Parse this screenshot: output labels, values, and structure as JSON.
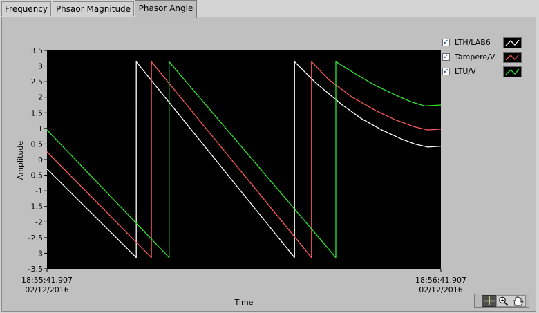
{
  "tabs": [
    {
      "label": "Frequency",
      "active": false
    },
    {
      "label": "Phsaor Magnitude",
      "active": false
    },
    {
      "label": "Phasor Angle",
      "active": true
    }
  ],
  "legend": [
    {
      "label": "LTH/LAB6",
      "checked": true,
      "color": "#ffffff"
    },
    {
      "label": "Tampere/V",
      "checked": true,
      "color": "#ff5a5a"
    },
    {
      "label": "LTU/V",
      "checked": true,
      "color": "#2ee82e"
    }
  ],
  "toolbar": {
    "tools": [
      {
        "icon": "crosshair-cursor-icon",
        "active": true
      },
      {
        "icon": "zoom-icon",
        "active": false
      },
      {
        "icon": "pan-hand-icon",
        "active": false
      }
    ]
  },
  "chart_data": {
    "type": "line",
    "xlabel": "Time",
    "ylabel": "Amplitude",
    "xlim": [
      0,
      60
    ],
    "ylim": [
      -3.5,
      3.5
    ],
    "y_ticks": [
      3.5,
      3,
      2.5,
      2,
      1.5,
      1,
      0.5,
      0,
      -0.5,
      -1,
      -1.5,
      -2,
      -2.5,
      -3,
      -3.5
    ],
    "x_tick_labels": [
      {
        "x": 0,
        "time": "18:55:41.907",
        "date": "02/12/2016"
      },
      {
        "x": 60,
        "time": "18:56:41.907",
        "date": "02/12/2016"
      }
    ],
    "grid": false,
    "legend_position": "top-right",
    "series": [
      {
        "name": "LTH/LAB6",
        "color": "#ffffff",
        "points": [
          [
            0,
            -0.3
          ],
          [
            13.6,
            -3.14
          ],
          [
            13.6,
            3.14
          ],
          [
            37.7,
            -3.14
          ],
          [
            37.7,
            3.14
          ],
          [
            41,
            2.45
          ],
          [
            45,
            1.75
          ],
          [
            48,
            1.3
          ],
          [
            51,
            0.95
          ],
          [
            54,
            0.66
          ],
          [
            56,
            0.5
          ],
          [
            58,
            0.4
          ],
          [
            60,
            0.43
          ]
        ]
      },
      {
        "name": "Tampere/V",
        "color": "#ff5a5a",
        "points": [
          [
            0,
            0.25
          ],
          [
            15.9,
            -3.14
          ],
          [
            15.9,
            3.14
          ],
          [
            40.3,
            -3.14
          ],
          [
            40.3,
            3.14
          ],
          [
            43,
            2.55
          ],
          [
            46.5,
            2.0
          ],
          [
            50,
            1.58
          ],
          [
            53,
            1.28
          ],
          [
            56,
            1.05
          ],
          [
            58,
            0.95
          ],
          [
            60,
            0.98
          ]
        ]
      },
      {
        "name": "LTU/V",
        "color": "#2ee82e",
        "points": [
          [
            0,
            0.95
          ],
          [
            18.6,
            -3.14
          ],
          [
            18.6,
            3.14
          ],
          [
            44,
            -3.14
          ],
          [
            44,
            3.14
          ],
          [
            47,
            2.75
          ],
          [
            50,
            2.38
          ],
          [
            53,
            2.08
          ],
          [
            55.5,
            1.85
          ],
          [
            57.5,
            1.72
          ],
          [
            60,
            1.75
          ]
        ]
      }
    ]
  }
}
